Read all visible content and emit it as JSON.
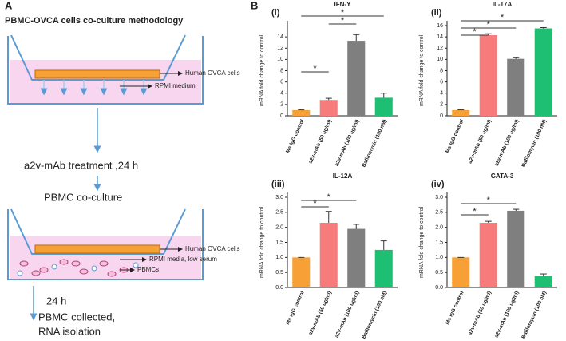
{
  "panel_a": {
    "letter": "A",
    "title": "PBMC-OVCA cells co-culture methodology",
    "well1_cells": "Human OVCA cells",
    "well1_medium": "RPMI medium",
    "step1": "a2v-mAb treatment ,24 h",
    "step2": "PBMC co-culture",
    "well2_cells": "Human OVCA cells",
    "well2_medium": "RPMI media,  low serum",
    "well2_pbmc": "PBMCs",
    "step3": "24 h",
    "step4_line1": "PBMC collected,",
    "step4_line2": "RNA isolation"
  },
  "panel_b_letter": "B",
  "chart_data": [
    {
      "type": "bar",
      "panel": "(i)",
      "title": "IFN-Y",
      "y_label": "mRNA fold change to control",
      "categories": [
        "Ms IgG control",
        "a2v-mAb (50 ug/ml)",
        "a2v-mAb (100 ug/ml)",
        "Bafilomycin (100 nM)"
      ],
      "values": [
        1,
        2.8,
        13.3,
        3.2
      ],
      "errors": [
        0.05,
        0.3,
        1.1,
        0.8
      ],
      "colors": [
        "#f7a035",
        "#f77b7b",
        "#7f7f7f",
        "#1fbf73"
      ],
      "ylim": [
        0,
        16
      ],
      "yticks": [
        0,
        2,
        4,
        6,
        8,
        10,
        12,
        14
      ],
      "annotations": [
        "*",
        "*",
        "*"
      ]
    },
    {
      "type": "bar",
      "panel": "(ii)",
      "title": "IL-17A",
      "y_label": "mRNA fold change to control",
      "categories": [
        "Ms IgG control",
        "a2v-mAb (50 ug/ml)",
        "a2v-mAb (100 ug/ml)",
        "Bafilomycin (100 nM)"
      ],
      "values": [
        1,
        14.3,
        10.1,
        15.5
      ],
      "errors": [
        0.05,
        0.25,
        0.2,
        0.15
      ],
      "colors": [
        "#f7a035",
        "#f77b7b",
        "#7f7f7f",
        "#1fbf73"
      ],
      "ylim": [
        0,
        16
      ],
      "yticks": [
        0,
        2,
        4,
        6,
        8,
        10,
        12,
        14,
        16
      ],
      "annotations": [
        "*",
        "*",
        "*"
      ]
    },
    {
      "type": "bar",
      "panel": "(iii)",
      "title": "IL-12A",
      "y_label": "mRNA fold change to control",
      "categories": [
        "Ms IgG control",
        "a2v-mAb (50 ug/ml)",
        "a2v-mAb (100 ug/ml)",
        "Bafilomycin (100 nM)"
      ],
      "values": [
        1.0,
        2.15,
        1.95,
        1.25
      ],
      "errors": [
        0,
        0.38,
        0.15,
        0.3
      ],
      "colors": [
        "#f7a035",
        "#f77b7b",
        "#7f7f7f",
        "#1fbf73"
      ],
      "ylim": [
        0,
        3
      ],
      "yticks": [
        {
          "value": 0,
          "label": "0.0"
        },
        0.5,
        {
          "value": 1,
          "label": "1.0"
        },
        1.5,
        {
          "value": 2,
          "label": "2.0"
        },
        2.5,
        {
          "value": 3,
          "label": "3.0"
        }
      ],
      "annotations": [
        "*",
        "*"
      ]
    },
    {
      "type": "bar",
      "panel": "(iv)",
      "title": "GATA-3",
      "y_label": "mRNA fold change to control",
      "categories": [
        "Ms IgG control",
        "a2v-mAb (50 ug/ml)",
        "a2v-mAb (100 ug/ml)",
        "Bafilomycin (100 nM)"
      ],
      "values": [
        1.0,
        2.15,
        2.55,
        0.38
      ],
      "errors": [
        0,
        0.05,
        0.05,
        0.07
      ],
      "colors": [
        "#f7a035",
        "#f77b7b",
        "#7f7f7f",
        "#1fbf73"
      ],
      "ylim": [
        0,
        3
      ],
      "yticks": [
        {
          "value": 0,
          "label": "0.0"
        },
        0.5,
        {
          "value": 1,
          "label": "1.0"
        },
        1.5,
        {
          "value": 2,
          "label": "2.0"
        },
        2.5,
        {
          "value": 3,
          "label": "3.0"
        }
      ],
      "annotations": [
        "*",
        "*"
      ]
    }
  ]
}
